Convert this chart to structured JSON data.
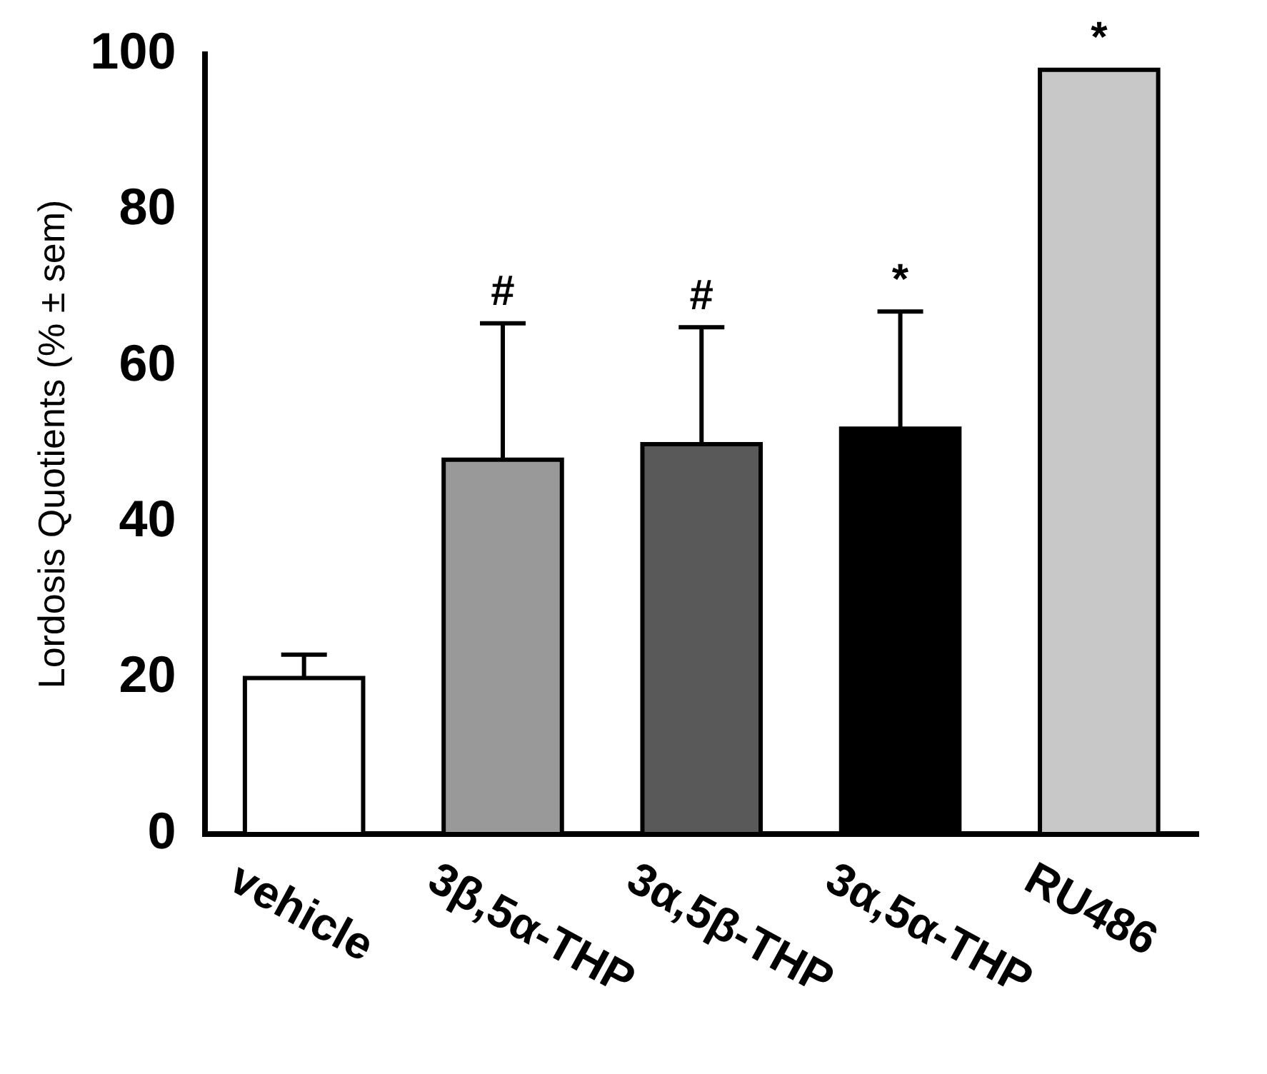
{
  "chart_data": {
    "type": "bar",
    "ylabel": "Lordosis Quotients (% ± sem)",
    "categories": [
      "vehicle",
      "3β,5α-THP",
      "3α,5β-THP",
      "3α,5α-THP",
      "RU486"
    ],
    "values": [
      20,
      48,
      50,
      52,
      98
    ],
    "errors": [
      [
        20,
        23
      ],
      [
        48,
        65.5
      ],
      [
        50,
        65
      ],
      [
        52,
        67
      ],
      null
    ],
    "colors": [
      "#ffffff",
      "#999999",
      "#595959",
      "#000000",
      "#c8c8c8"
    ],
    "ylim": [
      0,
      100
    ],
    "yticks": [
      0,
      20,
      40,
      60,
      80,
      100
    ],
    "grid": false,
    "legend": false,
    "annotations": [
      {
        "text": "#",
        "x": "3β,5α-THP",
        "y": 65.5
      },
      {
        "text": "#",
        "x": "3α,5β-THP",
        "y": 65
      },
      {
        "text": "*",
        "x": "3α,5α-THP",
        "y": 67
      },
      {
        "text": "*",
        "x": "RU486",
        "y": 98
      }
    ]
  }
}
